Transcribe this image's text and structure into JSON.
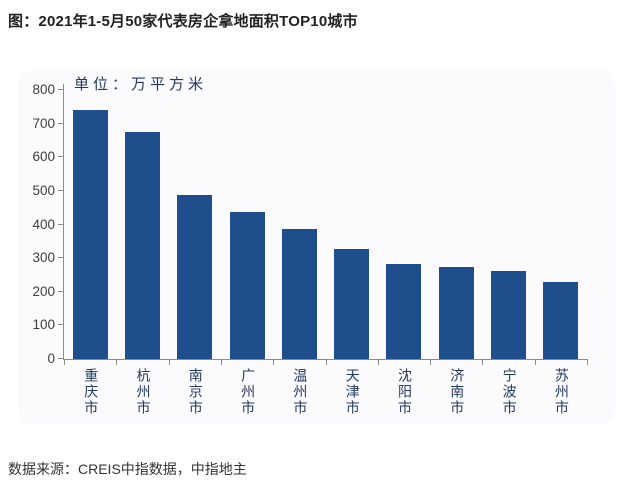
{
  "page": {
    "title": "图：2021年1-5月50家代表房企拿地面积TOP10城市",
    "source": "数据来源：CREIS中指数据，中指地主"
  },
  "chart_data": {
    "type": "bar",
    "title": "2021年1-5月50家代表房企拿地面积TOP10城市",
    "unit_label": "单位：万平方米",
    "categories": [
      "重庆市",
      "杭州市",
      "南京市",
      "广州市",
      "温州市",
      "天津市",
      "沈阳市",
      "济南市",
      "宁波市",
      "苏州市"
    ],
    "values": [
      740,
      675,
      487,
      438,
      388,
      328,
      282,
      274,
      262,
      228
    ],
    "xlabel": "",
    "ylabel": "",
    "ylim": [
      0,
      800
    ],
    "yticks": [
      0,
      100,
      200,
      300,
      400,
      500,
      600,
      700,
      800
    ],
    "grid": false,
    "legend": false,
    "colors": {
      "bar": "#1e4e8c",
      "axis": "#8c8c8c",
      "cjk_label": "#233a60",
      "tick_label": "#3f3f3f",
      "card_background": "#fbfafd",
      "page_background": "#ffffff",
      "title_text": "#222222",
      "source_text": "#333333"
    }
  }
}
